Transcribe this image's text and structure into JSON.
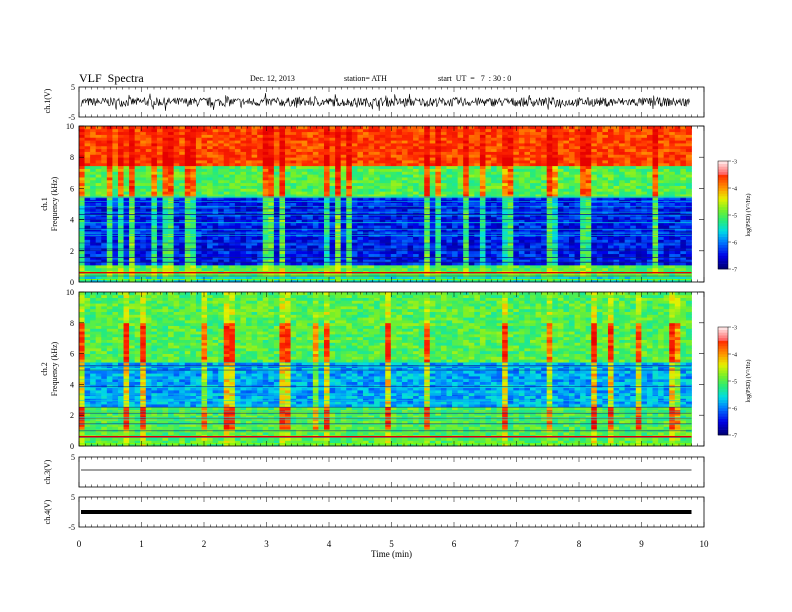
{
  "header": {
    "title": "VLF  Spectra",
    "date": "Dec. 12, 2013",
    "station": "station= ATH",
    "start": "start  UT  =   7  : 30 : 0"
  },
  "colors": {
    "spectro_low": "#00008b",
    "spectro_mid": "#00c8c8",
    "spectro_green": "#20e020",
    "spectro_high": "#ff2000",
    "colorbar": [
      "#000080",
      "#0000ff",
      "#00c0ff",
      "#00ff80",
      "#80ff00",
      "#ffff00",
      "#ff8000",
      "#ff0000",
      "#ff6060",
      "#ffc0c0"
    ]
  },
  "chart_data": [
    {
      "type": "line",
      "panel": "ch.1 waveform",
      "ylabel": "ch.1(V)",
      "ylim": [
        -5,
        5
      ],
      "yticks": [
        "5",
        "-5"
      ],
      "description_values": {
        "mean": 0,
        "typical_amplitude": 1.5
      }
    },
    {
      "type": "heatmap",
      "panel": "ch.1 spectrogram",
      "ylabel": "ch.1\nFrequency (kHz)",
      "ylabel_lines": [
        "ch.1",
        "Frequency  (kHz)"
      ],
      "yticks": [
        "0",
        "2",
        "4",
        "6",
        "8",
        "10"
      ],
      "ylim": [
        0,
        10
      ],
      "colorbar": {
        "label": "log(PSD) (V²/Hz)",
        "ticks": [
          "-3",
          "-4",
          "-5",
          "-6",
          "-7"
        ],
        "range": [
          -7,
          -3
        ]
      },
      "profile": [
        {
          "freq_range": [
            0,
            0.3
          ],
          "log_psd": -5.5
        },
        {
          "freq_range": [
            0.3,
            1.0
          ],
          "log_psd": -5.0
        },
        {
          "freq_range": [
            1.0,
            5.5
          ],
          "log_psd": -6.4
        },
        {
          "freq_range": [
            5.5,
            7.5
          ],
          "log_psd": -5.0
        },
        {
          "freq_range": [
            7.5,
            10
          ],
          "log_psd": -3.6
        }
      ]
    },
    {
      "type": "heatmap",
      "panel": "ch.2 spectrogram",
      "ylabel_lines": [
        "ch.2",
        "Frequency  (kHz)"
      ],
      "yticks": [
        "0",
        "2",
        "4",
        "6",
        "8",
        "10"
      ],
      "ylim": [
        0,
        10
      ],
      "colorbar": {
        "label": "log(PSD) (V²/Hz)",
        "ticks": [
          "-3",
          "-4",
          "-5",
          "-6",
          "-7"
        ],
        "range": [
          -7,
          -3
        ]
      },
      "profile": [
        {
          "freq_range": [
            0,
            2.5
          ],
          "log_psd": -5.0
        },
        {
          "freq_range": [
            2.5,
            5.5
          ],
          "log_psd": -5.8
        },
        {
          "freq_range": [
            5.5,
            10
          ],
          "log_psd": -5.0
        }
      ]
    },
    {
      "type": "line",
      "panel": "ch.3 waveform",
      "ylabel": "ch.3(V)",
      "ylim": [
        -5,
        5
      ],
      "yticks": [
        "5"
      ],
      "level": 0
    },
    {
      "type": "line",
      "panel": "ch.4 waveform",
      "ylabel": "ch.4(V)",
      "ylim": [
        -5,
        5
      ],
      "yticks": [
        "5",
        "-5"
      ],
      "level": 0
    },
    {
      "type": "axis",
      "xlabel": "Time  (min)",
      "xlim": [
        0,
        10
      ],
      "xticks": [
        "0",
        "1",
        "2",
        "3",
        "4",
        "5",
        "6",
        "7",
        "8",
        "9",
        "10"
      ],
      "data_end_min": 9.8
    }
  ]
}
